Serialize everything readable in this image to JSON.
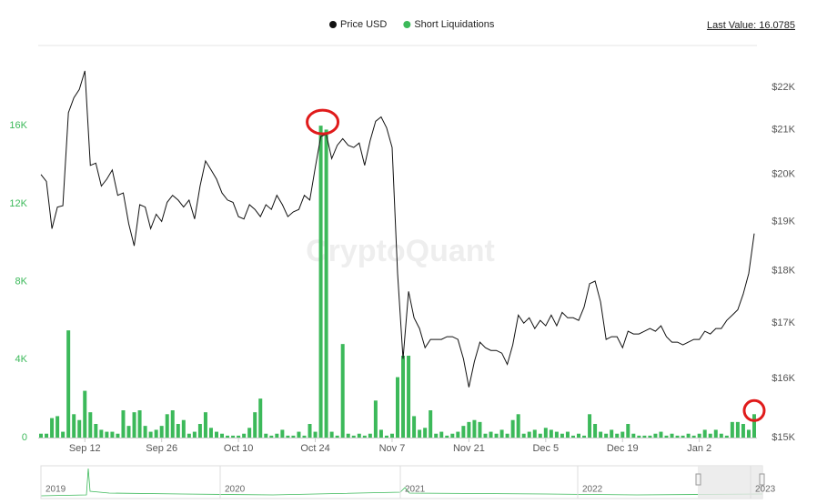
{
  "chart_data": {
    "type": "bar-line",
    "legend": "top",
    "last_value_label": "Last Value: 16.0785",
    "watermark": "CryptoQuant",
    "categories": [
      null,
      null,
      null,
      null,
      null,
      null,
      null,
      null,
      "Sep 12",
      null,
      null,
      null,
      null,
      null,
      null,
      null,
      null,
      null,
      null,
      null,
      null,
      null,
      "Sep 26",
      null,
      null,
      null,
      null,
      null,
      null,
      null,
      null,
      null,
      null,
      null,
      null,
      null,
      "Oct 10",
      null,
      null,
      null,
      null,
      null,
      null,
      null,
      null,
      null,
      null,
      null,
      null,
      null,
      "Oct 24",
      null,
      null,
      null,
      null,
      null,
      null,
      null,
      null,
      null,
      null,
      null,
      null,
      null,
      "Nov 7",
      null,
      null,
      null,
      null,
      null,
      null,
      null,
      null,
      null,
      null,
      null,
      null,
      null,
      "Nov 21",
      null,
      null,
      null,
      null,
      null,
      null,
      null,
      null,
      null,
      null,
      null,
      null,
      null,
      "Dec 5",
      null,
      null,
      null,
      null,
      null,
      null,
      null,
      null,
      null,
      null,
      null,
      null,
      null,
      "Dec 19",
      null,
      null,
      null,
      null,
      null,
      null,
      null,
      null,
      null,
      null,
      null,
      null,
      null,
      "Jan 2",
      null,
      null,
      null,
      null,
      null,
      null,
      null,
      null,
      null,
      null
    ],
    "series": [
      {
        "name": "Short Liquidations",
        "type": "bar",
        "color": "#3cb95a",
        "values": [
          200,
          200,
          1000,
          1100,
          300,
          5500,
          1200,
          900,
          2400,
          1300,
          700,
          400,
          300,
          300,
          200,
          1400,
          600,
          1300,
          1400,
          600,
          300,
          400,
          600,
          1200,
          1400,
          700,
          900,
          200,
          300,
          700,
          1300,
          500,
          300,
          200,
          100,
          100,
          100,
          200,
          500,
          1300,
          2000,
          200,
          100,
          200,
          400,
          100,
          100,
          300,
          100,
          700,
          300,
          16000,
          15800,
          300,
          100,
          4800,
          200,
          100,
          200,
          100,
          200,
          1900,
          400,
          100,
          200,
          3100,
          4200,
          4200,
          1100,
          400,
          500,
          1400,
          200,
          300,
          100,
          200,
          300,
          600,
          800,
          900,
          800,
          200,
          300,
          200,
          400,
          200,
          900,
          1200,
          200,
          300,
          400,
          200,
          500,
          400,
          300,
          200,
          300,
          100,
          200,
          100,
          1200,
          700,
          300,
          200,
          400,
          200,
          300,
          700,
          200,
          100,
          100,
          100,
          200,
          300,
          100,
          200,
          100,
          100,
          200,
          100,
          200,
          400,
          200,
          400,
          200,
          100,
          800,
          800,
          700,
          400,
          1200
        ]
      },
      {
        "name": "Price USD",
        "type": "line",
        "axis": "y2",
        "color": "#111111",
        "values": [
          20000,
          19850,
          18850,
          19300,
          19330,
          21400,
          21750,
          21950,
          22400,
          20200,
          20250,
          19750,
          19900,
          20100,
          19550,
          19600,
          18950,
          18500,
          19350,
          19300,
          18850,
          19150,
          19000,
          19400,
          19550,
          19450,
          19300,
          19450,
          19050,
          19750,
          20300,
          20100,
          19900,
          19600,
          19450,
          19400,
          19100,
          19050,
          19350,
          19250,
          19100,
          19350,
          19250,
          19550,
          19350,
          19100,
          19200,
          19250,
          19550,
          19450,
          20150,
          20850,
          20900,
          20350,
          20650,
          20800,
          20650,
          20600,
          20700,
          20200,
          20750,
          21200,
          21300,
          21050,
          20600,
          17950,
          16350,
          17600,
          17100,
          16900,
          16550,
          16700,
          16700,
          16700,
          16750,
          16750,
          16700,
          16350,
          15850,
          16300,
          16650,
          16550,
          16500,
          16500,
          16450,
          16250,
          16600,
          17150,
          17000,
          17100,
          16900,
          17050,
          16950,
          17150,
          16950,
          17200,
          17100,
          17100,
          17050,
          17300,
          17750,
          17800,
          17400,
          16700,
          16750,
          16750,
          16550,
          16850,
          16800,
          16800,
          16850,
          16900,
          16850,
          16950,
          16750,
          16650,
          16650,
          16600,
          16650,
          16700,
          16700,
          16850,
          16800,
          16900,
          16900,
          17050,
          17150,
          17250,
          17550,
          17950,
          18750
        ]
      }
    ],
    "ylim": [
      0,
      19600
    ],
    "yticks": [
      0,
      {
        "value": 4000,
        "label": "4K"
      },
      {
        "value": 8000,
        "label": "8K"
      },
      {
        "value": 12000,
        "label": "12K"
      },
      {
        "value": 16000,
        "label": "16K"
      }
    ],
    "y2log": true,
    "y2lim": [
      15000,
      22780
    ],
    "y2ticks": [
      {
        "value": 15000,
        "label": "$15K"
      },
      {
        "value": 16000,
        "label": "$16K"
      },
      {
        "value": 17000,
        "label": "$17K"
      },
      {
        "value": 18000,
        "label": "$18K"
      },
      {
        "value": 19000,
        "label": "$19K"
      },
      {
        "value": 20000,
        "label": "$20K"
      },
      {
        "value": 21000,
        "label": "$21K"
      },
      {
        "value": 22000,
        "label": "$22K"
      }
    ],
    "navigator_labels": [
      "2019",
      "2020",
      "2021",
      "2022",
      "2023"
    ]
  }
}
